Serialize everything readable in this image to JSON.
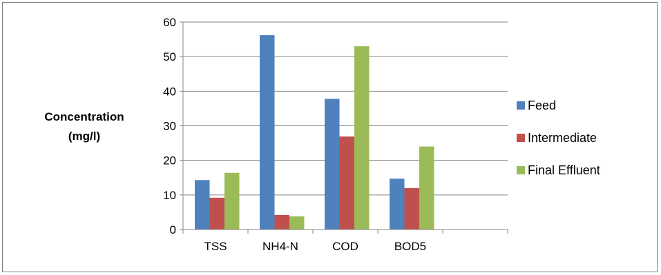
{
  "chart_data": {
    "type": "bar",
    "title": "",
    "xlabel": "",
    "ylabel_lines": [
      "Concentration",
      "(mg/l)"
    ],
    "categories": [
      "TSS",
      "NH4-N",
      "COD",
      "BOD5",
      ""
    ],
    "series": [
      {
        "name": "Feed",
        "color": "#4f81bd",
        "values": [
          14.3,
          56.2,
          37.8,
          14.7,
          null
        ]
      },
      {
        "name": "Intermediate",
        "color": "#c0504d",
        "values": [
          9.2,
          4.2,
          26.9,
          12.0,
          null
        ]
      },
      {
        "name": "Final Effluent",
        "color": "#9bbb59",
        "values": [
          16.4,
          3.8,
          53.0,
          24.0,
          null
        ]
      }
    ],
    "ylim": [
      0,
      60
    ],
    "yticks": [
      0,
      10,
      20,
      30,
      40,
      50,
      60
    ],
    "grid": true,
    "legend": "right"
  }
}
